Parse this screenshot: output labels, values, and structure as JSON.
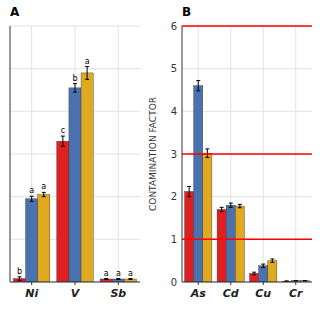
{
  "chart_data": [
    {
      "type": "bar",
      "title": "A",
      "categories": [
        "Ni",
        "V",
        "Sb"
      ],
      "series": [
        {
          "color": "#e02020",
          "values": [
            0.08,
            3.3,
            0.07
          ],
          "errors": [
            0.04,
            0.12,
            0.01
          ],
          "letters": [
            "b",
            "c",
            "a"
          ]
        },
        {
          "color": "#4a72b0",
          "values": [
            1.95,
            4.55,
            0.07
          ],
          "errors": [
            0.06,
            0.1,
            0.01
          ],
          "letters": [
            "a",
            "b",
            "a"
          ]
        },
        {
          "color": "#e0aa20",
          "values": [
            2.05,
            4.9,
            0.07
          ],
          "errors": [
            0.05,
            0.15,
            0.01
          ],
          "letters": [
            "a",
            "a",
            "a"
          ]
        }
      ],
      "ylim": [
        0,
        6
      ],
      "yticks": [
        0,
        1,
        2,
        3,
        4,
        5,
        6
      ],
      "grid": true,
      "tick_labels": "x"
    },
    {
      "type": "bar",
      "title": "B",
      "y_label": "CONTAMINATION FACTOR",
      "categories": [
        "As",
        "Cd",
        "Cu",
        "Cr"
      ],
      "series": [
        {
          "color": "#e02020",
          "values": [
            2.12,
            1.7,
            0.2,
            0.02
          ],
          "errors": [
            0.12,
            0.05,
            0.03,
            0.005
          ]
        },
        {
          "color": "#4a72b0",
          "values": [
            4.6,
            1.8,
            0.38,
            0.03
          ],
          "errors": [
            0.12,
            0.05,
            0.04,
            0.005
          ]
        },
        {
          "color": "#e0aa20",
          "values": [
            3.02,
            1.78,
            0.5,
            0.03
          ],
          "errors": [
            0.1,
            0.04,
            0.04,
            0.005
          ]
        }
      ],
      "hlines": [
        1,
        3,
        6
      ],
      "ylim": [
        0,
        6
      ],
      "yticks": [
        0,
        1,
        2,
        3,
        4,
        5,
        6
      ],
      "grid": true
    }
  ]
}
